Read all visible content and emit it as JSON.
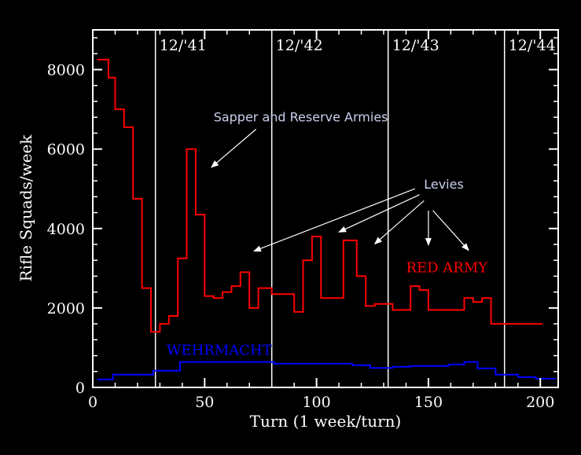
{
  "chart_data": {
    "type": "line",
    "title": "",
    "xlabel": "Turn (1 week/turn)",
    "ylabel": "Rifle Squads/week",
    "xlim": [
      0,
      208
    ],
    "ylim": [
      0,
      9000
    ],
    "xticks": [
      0,
      50,
      100,
      150,
      200
    ],
    "yticks": [
      0,
      2000,
      4000,
      6000,
      8000
    ],
    "minor_x_step": 10,
    "minor_y_step": 400,
    "vlines": [
      {
        "x": 28,
        "label": "12/'41"
      },
      {
        "x": 80,
        "label": "12/'42"
      },
      {
        "x": 132,
        "label": "12/'43"
      },
      {
        "x": 184,
        "label": "12/'44"
      }
    ],
    "series": [
      {
        "name": "RED ARMY",
        "color": "#ff0000",
        "steps": [
          [
            2,
            8250
          ],
          [
            7,
            7800
          ],
          [
            10,
            7000
          ],
          [
            14,
            6550
          ],
          [
            18,
            4750
          ],
          [
            22,
            2500
          ],
          [
            26,
            1400
          ],
          [
            30,
            1600
          ],
          [
            34,
            1800
          ],
          [
            38,
            3250
          ],
          [
            42,
            6000
          ],
          [
            46,
            4350
          ],
          [
            50,
            2300
          ],
          [
            54,
            2250
          ],
          [
            58,
            2400
          ],
          [
            62,
            2550
          ],
          [
            66,
            2900
          ],
          [
            70,
            2000
          ],
          [
            74,
            2500
          ],
          [
            80,
            2350
          ],
          [
            90,
            1900
          ],
          [
            94,
            3200
          ],
          [
            98,
            3800
          ],
          [
            102,
            2250
          ],
          [
            112,
            3700
          ],
          [
            118,
            2800
          ],
          [
            122,
            2050
          ],
          [
            126,
            2100
          ],
          [
            134,
            1950
          ],
          [
            142,
            2550
          ],
          [
            146,
            2450
          ],
          [
            150,
            1950
          ],
          [
            166,
            2250
          ],
          [
            170,
            2150
          ],
          [
            174,
            2250
          ],
          [
            178,
            1600
          ],
          [
            201,
            1600
          ]
        ]
      },
      {
        "name": "WEHRMACHT",
        "color": "#0000ff",
        "steps": [
          [
            2,
            200
          ],
          [
            9,
            320
          ],
          [
            27,
            420
          ],
          [
            39,
            640
          ],
          [
            81,
            600
          ],
          [
            116,
            560
          ],
          [
            124,
            490
          ],
          [
            134,
            520
          ],
          [
            142,
            540
          ],
          [
            159,
            580
          ],
          [
            166,
            640
          ],
          [
            172,
            480
          ],
          [
            180,
            320
          ],
          [
            190,
            260
          ],
          [
            198,
            220
          ],
          [
            207,
            220
          ]
        ]
      }
    ],
    "annotations": [
      {
        "text": "Sapper and Reserve Armies",
        "color": "#c8d0ec",
        "anchor": [
          54,
          6700
        ],
        "arrows": [
          {
            "from": [
              73,
              6500
            ],
            "to": [
              53,
              5540
            ]
          }
        ]
      },
      {
        "text": "Levies",
        "color": "#c8d0ec",
        "anchor": [
          148,
          5000
        ],
        "arrows": [
          {
            "from": [
              144,
              5000
            ],
            "to": [
              72,
              3430
            ]
          },
          {
            "from": [
              146,
              4850
            ],
            "to": [
              110,
              3910
            ]
          },
          {
            "from": [
              148,
              4700
            ],
            "to": [
              126,
              3610
            ]
          },
          {
            "from": [
              150,
              4450
            ],
            "to": [
              150,
              3580
            ]
          },
          {
            "from": [
              152,
              4450
            ],
            "to": [
              168,
              3450
            ]
          }
        ]
      },
      {
        "text": "RED ARMY",
        "color": "#ff0000",
        "anchor": [
          140,
          2900
        ]
      },
      {
        "text": "WEHRMACHT",
        "color": "#0000ff",
        "anchor": [
          33,
          820
        ]
      }
    ]
  }
}
